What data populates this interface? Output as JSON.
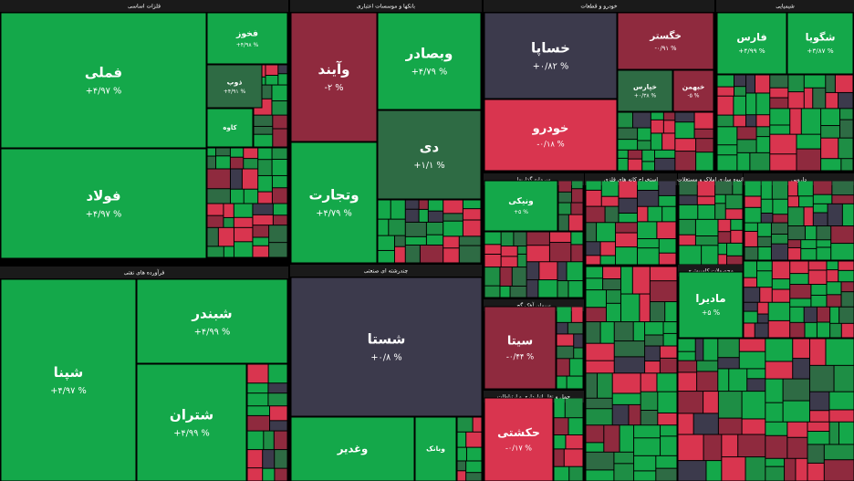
{
  "sectors": [
    {
      "title": "فلزات اساسی",
      "tiles": [
        {
          "label": "فملی",
          "change": "+۴/۹۷ %"
        },
        {
          "label": "فولاد",
          "change": "+۴/۹۷ %"
        },
        {
          "label": "فخوز",
          "change": "+۴/۹۸ %"
        },
        {
          "label": "ذوب",
          "change": "+۴/۹۱ %"
        },
        {
          "label": "کاوه"
        }
      ]
    },
    {
      "title": "بانکها و موسسات اعتباری",
      "tiles": [
        {
          "label": "وآیند",
          "change": "-۲ %"
        },
        {
          "label": "وبصادر",
          "change": "+۴/۷۹ %"
        },
        {
          "label": "دی",
          "change": "+۱/۱ %"
        },
        {
          "label": "وتجارت",
          "change": "+۴/۷۹ %"
        }
      ]
    },
    {
      "title": "خودرو و قطعات",
      "tiles": [
        {
          "label": "خساپا",
          "change": "+۰/۸۲ %"
        },
        {
          "label": "خودرو",
          "change": "-۰/۱۸ %"
        },
        {
          "label": "خگستر",
          "change": "-۰/۹۱ %"
        },
        {
          "label": "خپارس",
          "change": "+۰/۳۸ %"
        },
        {
          "label": "خبهمن",
          "change": "-۵ %"
        }
      ]
    },
    {
      "title": "شیمیایی",
      "tiles": [
        {
          "label": "فارس",
          "change": "+۴/۹۹ %"
        },
        {
          "label": "شگویا",
          "change": "+۳/۸۷ %"
        }
      ]
    },
    {
      "title": "فرآورده های نفتی",
      "tiles": [
        {
          "label": "شپنا",
          "change": "+۴/۹۷ %"
        },
        {
          "label": "شبندر",
          "change": "+۴/۹۹ %"
        },
        {
          "label": "شتران",
          "change": "+۴/۹۹ %"
        }
      ]
    },
    {
      "title": "چندرشته ای صنعتی",
      "tiles": [
        {
          "label": "شستا",
          "change": "+۰/۸ %"
        },
        {
          "label": "وغدیر"
        },
        {
          "label": "وبانک"
        }
      ]
    },
    {
      "title": "سرمایه گذاریها",
      "tiles": [
        {
          "label": "ونیکی",
          "change": "+۵ %"
        }
      ]
    },
    {
      "title": "استخراج کانه های فلزی",
      "tiles": []
    },
    {
      "title": "انبوه سازی املاک و مستغلات",
      "tiles": []
    },
    {
      "title": "دارویی",
      "tiles": []
    },
    {
      "title": "سیمان آهک گچ",
      "tiles": [
        {
          "label": "سیتا",
          "change": "-۰/۴۴ %"
        }
      ]
    },
    {
      "title": "حمل و نقل انبارداری و ارتباطات",
      "tiles": [
        {
          "label": "حکشتی",
          "change": "-۰/۱۷ %"
        }
      ]
    },
    {
      "title": "محصولات کامپیوتری",
      "tiles": [
        {
          "label": "مادیرا",
          "change": "+۵ %"
        }
      ]
    }
  ]
}
